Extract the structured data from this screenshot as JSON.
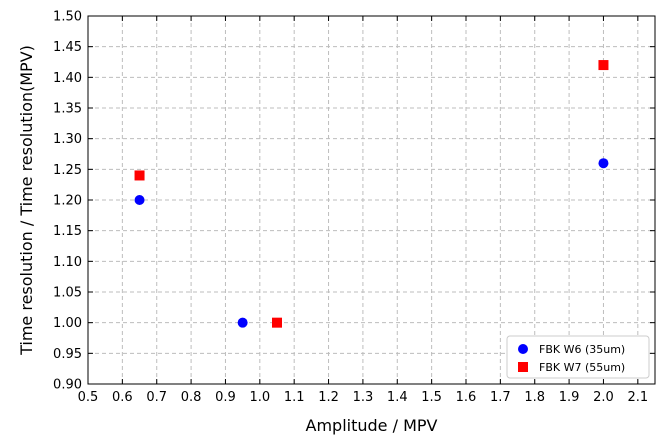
{
  "chart_data": {
    "type": "scatter",
    "xlabel": "Amplitude / MPV",
    "ylabel": "Time resolution / Time resolution(MPV)",
    "xlim": [
      0.5,
      2.15
    ],
    "ylim": [
      0.9,
      1.5
    ],
    "xticks": [
      "0.5",
      "0.6",
      "0.7",
      "0.8",
      "0.9",
      "1.0",
      "1.1",
      "1.2",
      "1.3",
      "1.4",
      "1.5",
      "1.6",
      "1.7",
      "1.8",
      "1.9",
      "2.0",
      "2.1"
    ],
    "yticks": [
      "0.90",
      "0.95",
      "1.00",
      "1.05",
      "1.10",
      "1.15",
      "1.20",
      "1.25",
      "1.30",
      "1.35",
      "1.40",
      "1.45",
      "1.50"
    ],
    "grid": true,
    "legend_position": "bottom-right",
    "series": [
      {
        "name": "FBK W6 (35um)",
        "marker": "circle",
        "color": "#0000ff",
        "x": [
          0.65,
          0.95,
          2.0
        ],
        "y": [
          1.2,
          1.0,
          1.26
        ]
      },
      {
        "name": "FBK W7 (55um)",
        "marker": "square",
        "color": "#ff0000",
        "x": [
          0.65,
          1.05,
          2.0
        ],
        "y": [
          1.24,
          1.0,
          1.42
        ]
      }
    ]
  }
}
